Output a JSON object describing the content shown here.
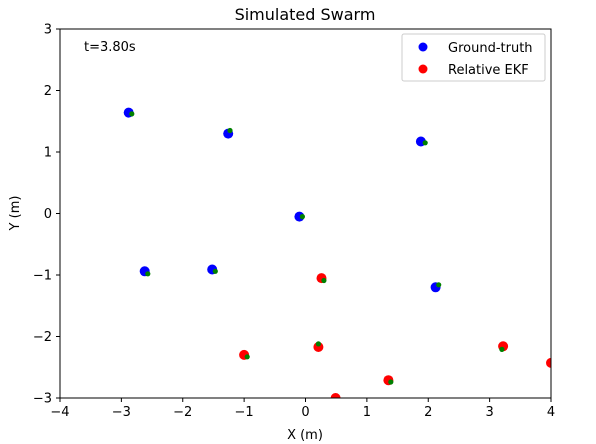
{
  "chart_data": {
    "type": "scatter",
    "title": "Simulated Swarm",
    "xlabel": "X (m)",
    "ylabel": "Y (m)",
    "xlim": [
      -4,
      4
    ],
    "ylim": [
      -3,
      3
    ],
    "xticks": [
      -4,
      -3,
      -2,
      -1,
      0,
      1,
      2,
      3,
      4
    ],
    "yticks": [
      -3,
      -2,
      -1,
      0,
      1,
      2,
      3
    ],
    "xtick_labels": [
      "−4",
      "−3",
      "−2",
      "−1",
      "0",
      "1",
      "2",
      "3",
      "4"
    ],
    "ytick_labels": [
      "−3",
      "−2",
      "−1",
      "0",
      "1",
      "2",
      "3"
    ],
    "grid": false,
    "legend_placement": "top-right",
    "annotation": "t=3.80s",
    "series": [
      {
        "name": "Ground-truth",
        "color": "#0000ff",
        "points": [
          [
            -2.88,
            1.64
          ],
          [
            -1.26,
            1.3
          ],
          [
            1.88,
            1.17
          ],
          [
            -0.1,
            -0.05
          ],
          [
            -2.62,
            -0.94
          ],
          [
            -1.52,
            -0.91
          ],
          [
            2.12,
            -1.2
          ]
        ]
      },
      {
        "name": "Relative EKF",
        "color": "#ff0000",
        "points": [
          [
            0.26,
            -1.05
          ],
          [
            -1.0,
            -2.3
          ],
          [
            0.21,
            -2.17
          ],
          [
            1.35,
            -2.71
          ],
          [
            3.22,
            -2.16
          ],
          [
            4.0,
            -2.43
          ],
          [
            0.49,
            -3.0
          ]
        ]
      },
      {
        "color": "#008000",
        "points": [
          [
            -2.83,
            1.62
          ],
          [
            -1.23,
            1.35
          ],
          [
            1.95,
            1.15
          ],
          [
            -0.05,
            -0.05
          ],
          [
            -2.57,
            -0.98
          ],
          [
            -1.47,
            -0.94
          ],
          [
            2.17,
            -1.16
          ],
          [
            0.3,
            -1.09
          ],
          [
            -0.95,
            -2.33
          ],
          [
            0.21,
            -2.12
          ],
          [
            1.39,
            -2.74
          ],
          [
            3.2,
            -2.21
          ]
        ]
      }
    ]
  }
}
